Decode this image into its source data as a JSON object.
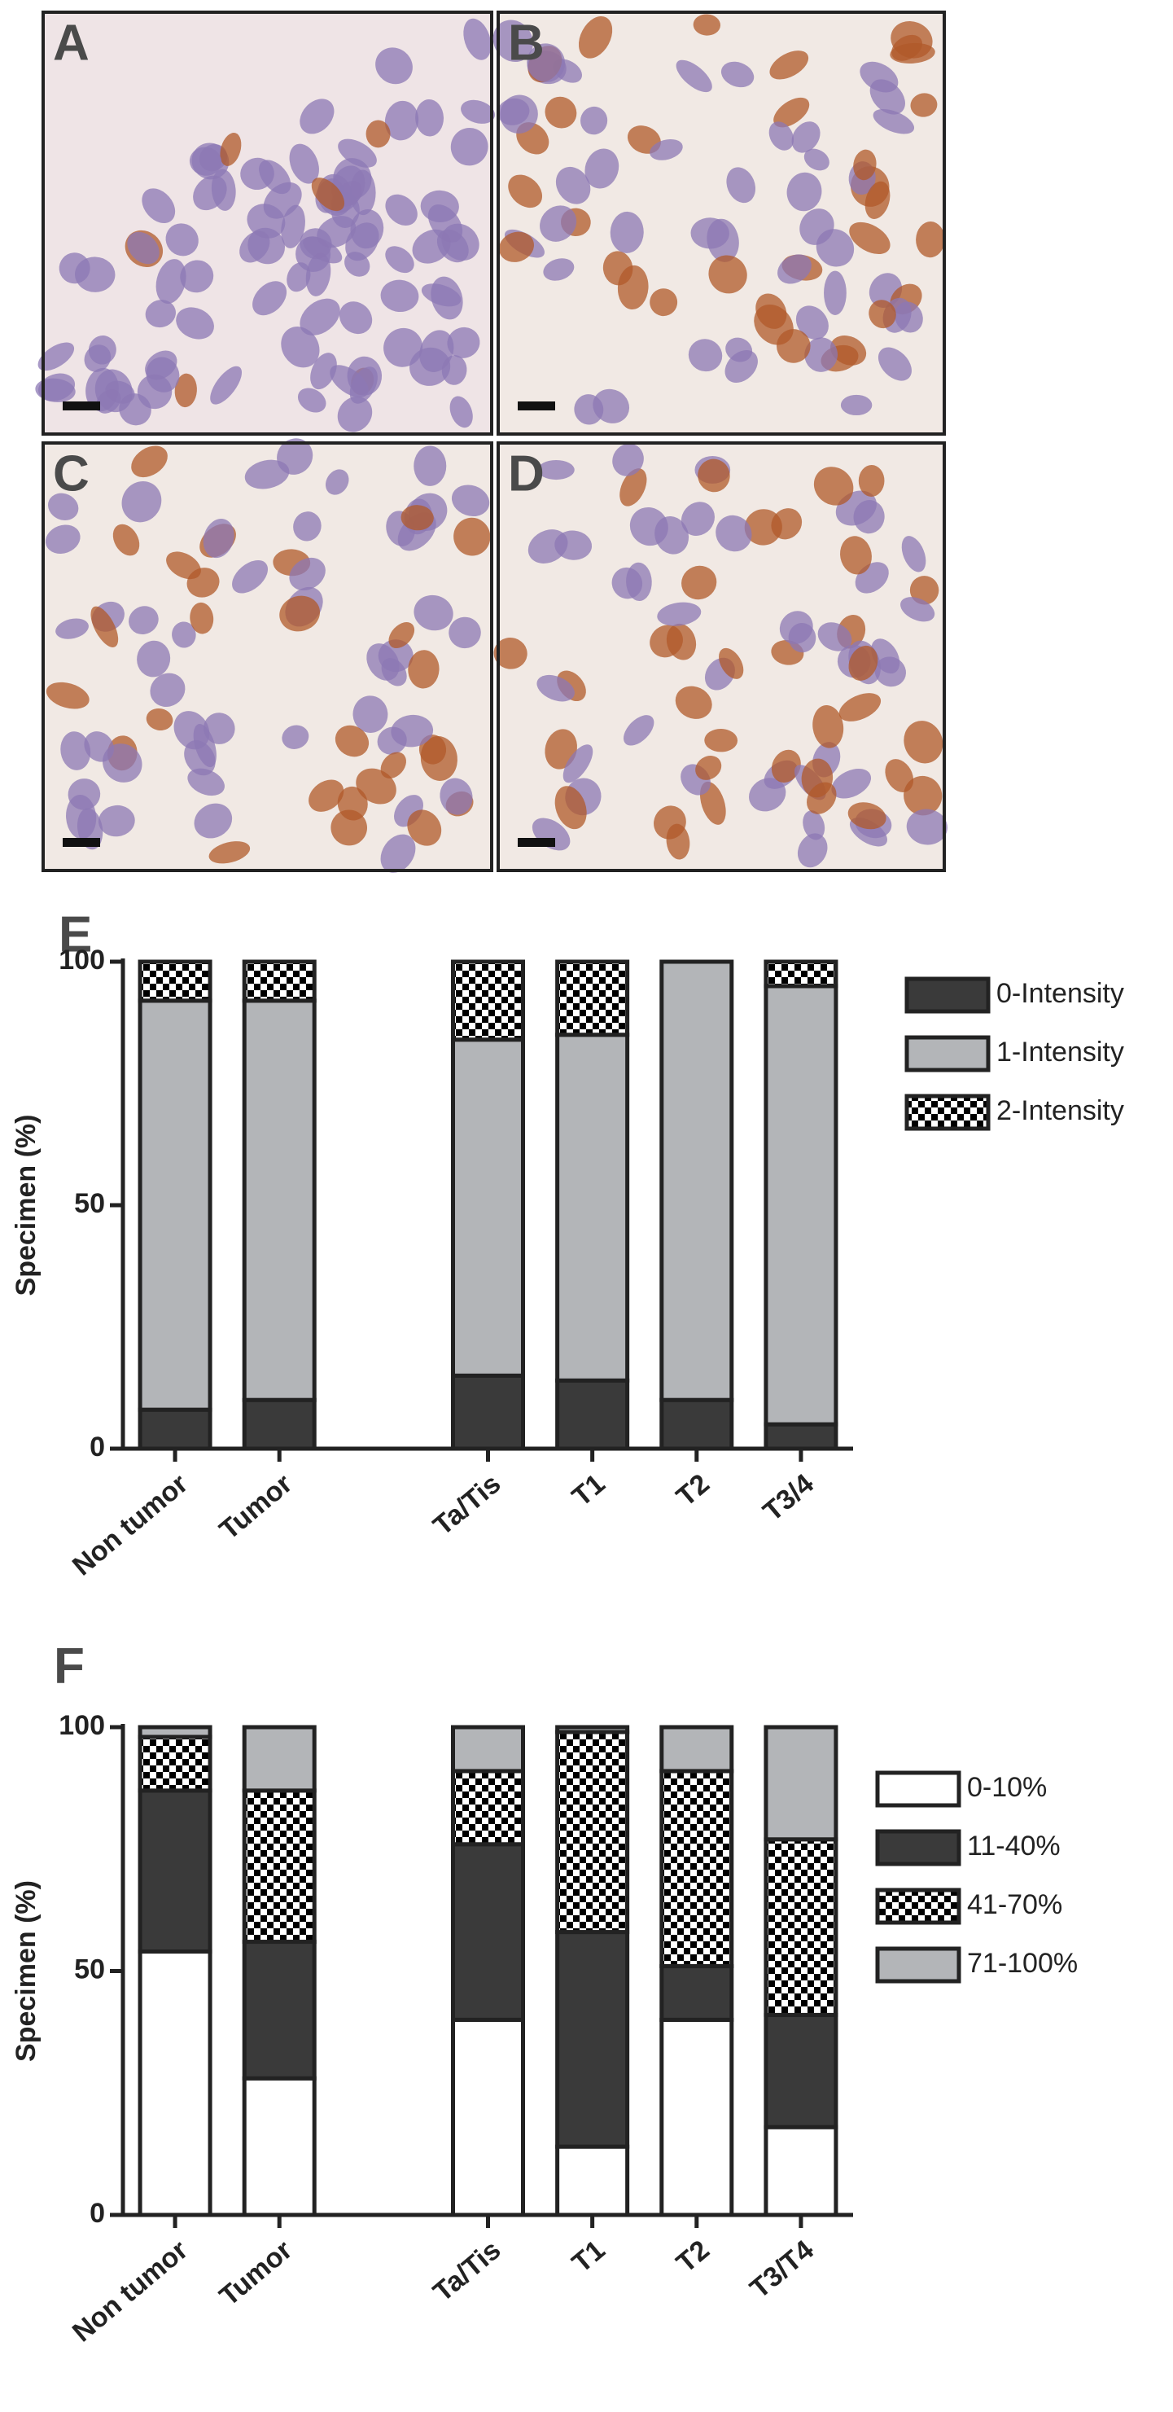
{
  "panels": {
    "labels": [
      "A",
      "B",
      "C",
      "D"
    ]
  },
  "chart_labels": [
    "E",
    "F"
  ],
  "chart_data": [
    {
      "type": "bar",
      "stacked": true,
      "ylabel": "Specimen (%)",
      "categories": [
        "Non tumor",
        "Tumor",
        null,
        "Ta/Tis",
        "T1",
        "T2",
        "T3/4"
      ],
      "ylim": [
        0,
        100
      ],
      "yticks": [
        0,
        50,
        100
      ],
      "legend": "right",
      "series": [
        {
          "name": "0-Intensity",
          "color": "#3a3a3a",
          "values": [
            8,
            10,
            0,
            15,
            14,
            10,
            5
          ]
        },
        {
          "name": "1-Intensity",
          "color": "#b3b5b8",
          "values": [
            84,
            82,
            0,
            69,
            71,
            90,
            90
          ]
        },
        {
          "name": "2-Intensity",
          "color": "#000000",
          "pattern": "checker",
          "values": [
            8,
            8,
            0,
            16,
            15,
            0,
            5
          ]
        }
      ]
    },
    {
      "type": "bar",
      "stacked": true,
      "ylabel": "Specimen (%)",
      "categories": [
        "Non tumor",
        "Tumor",
        null,
        "Ta/Tis",
        "T1",
        "T2",
        "T3/T4"
      ],
      "ylim": [
        0,
        100
      ],
      "yticks": [
        0,
        50,
        100
      ],
      "legend": "right",
      "series": [
        {
          "name": "0-10%",
          "color": "#ffffff",
          "values": [
            54,
            28,
            0,
            40,
            14,
            40,
            18
          ]
        },
        {
          "name": "11-40%",
          "color": "#3a3a3a",
          "values": [
            33,
            28,
            0,
            36,
            44,
            11,
            23
          ]
        },
        {
          "name": "41-70%",
          "color": "#000000",
          "pattern": "checker",
          "values": [
            11,
            31,
            0,
            15,
            41,
            40,
            36
          ]
        },
        {
          "name": "71-100%",
          "color": "#b3b5b8",
          "values": [
            2,
            13,
            0,
            9,
            1,
            9,
            23
          ]
        }
      ]
    }
  ]
}
